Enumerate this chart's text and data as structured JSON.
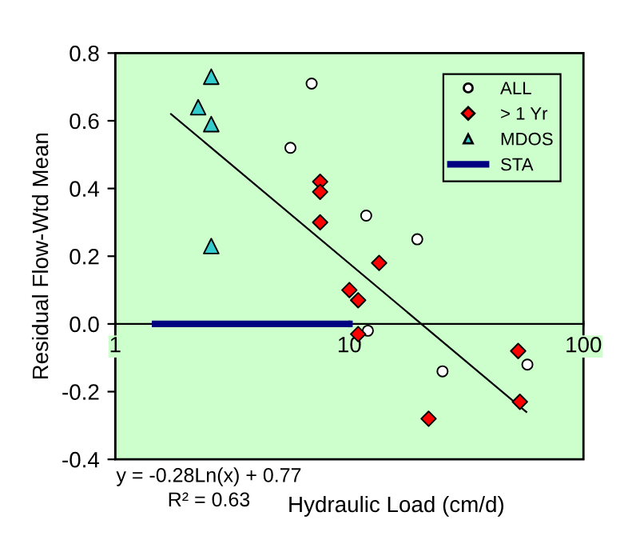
{
  "chart_data": {
    "type": "scatter",
    "xlabel": "Hydraulic Load (cm/d)",
    "ylabel": "Residual Flow-Wtd Mean",
    "log": "x",
    "xlim": [
      1,
      100
    ],
    "xticks": [
      1,
      10,
      100
    ],
    "ylim": [
      -0.4,
      0.8
    ],
    "yticks": [
      {
        "value": -0.4,
        "label": "-0.4"
      },
      {
        "value": -0.2,
        "label": "-0.2"
      },
      {
        "value": 0,
        "label": "0.0"
      },
      {
        "value": 0.2,
        "label": "0.2"
      },
      {
        "value": 0.4,
        "label": "0.4"
      },
      {
        "value": 0.6,
        "label": "0.6"
      },
      {
        "value": 0.8,
        "label": "0.8"
      }
    ],
    "grid": false,
    "legend": "top right",
    "series": [
      {
        "name": "ALL",
        "color": "#ffffff",
        "marker": "circle",
        "x": [
          6.9,
          5.6,
          11.8,
          19.5,
          12,
          25,
          57.6
        ],
        "values": [
          0.71,
          0.52,
          0.32,
          0.25,
          -0.02,
          -0.14,
          -0.12
        ]
      },
      {
        "name": "> 1 Yr",
        "color": "#ff0000",
        "marker": "diamond",
        "x": [
          7.5,
          7.5,
          7.5,
          10.0,
          10.9,
          10.9,
          13.4,
          21.8,
          52.6,
          53.5
        ],
        "values": [
          0.42,
          0.39,
          0.3,
          0.1,
          0.07,
          -0.03,
          0.18,
          -0.28,
          -0.08,
          -0.23
        ]
      },
      {
        "name": "MDOS",
        "color": "#33cccc",
        "marker": "triangle",
        "x": [
          2.57,
          2.26,
          2.57,
          2.57
        ],
        "values": [
          0.73,
          0.64,
          0.59,
          0.23
        ]
      },
      {
        "name": "STA",
        "type": "line",
        "color": "#000080",
        "marker": "none",
        "x": [
          1.48,
          10
        ],
        "values": [
          0,
          0
        ]
      },
      {
        "type": "line",
        "color": "#000000",
        "marker": "none",
        "x": [
          1.73,
          57
        ],
        "values": [
          0.62,
          -0.26
        ]
      }
    ],
    "annotations": [
      "y = -0.28Ln(x) + 0.77",
      "R² = 0.63"
    ]
  }
}
